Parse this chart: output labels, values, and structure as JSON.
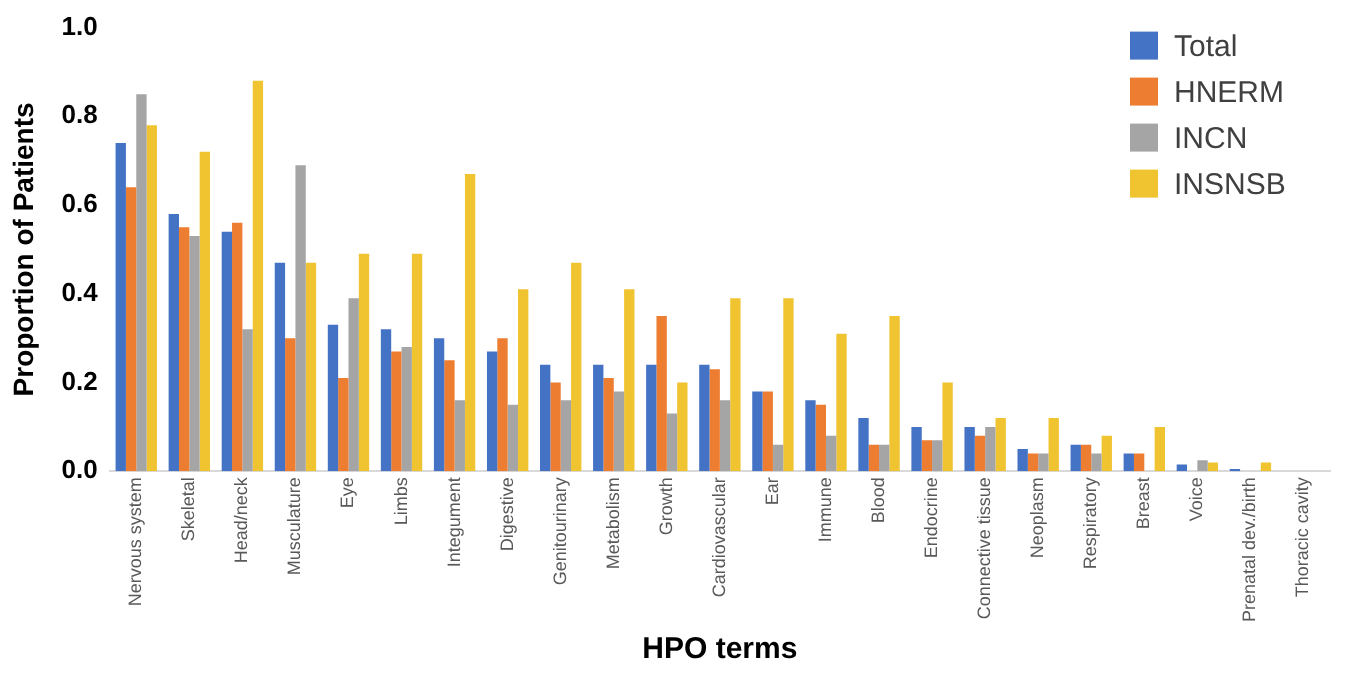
{
  "chart_data": {
    "type": "bar",
    "xlabel": "HPO terms",
    "ylabel": "Proportion of Patients",
    "categories": [
      "Nervous system",
      "Skeletal",
      "Head/neck",
      "Musculature",
      "Eye",
      "Limbs",
      "Integument",
      "Digestive",
      "Genitourinary",
      "Metabolism",
      "Growth",
      "Cardiovascular",
      "Ear",
      "Immune",
      "Blood",
      "Endocrine",
      "Connective tissue",
      "Neoplasm",
      "Respiratory",
      "Breast",
      "Voice",
      "Prenatal dev./birth",
      "Thoracic cavity"
    ],
    "series": [
      {
        "name": "Total",
        "color": "#4472c4",
        "values": [
          0.74,
          0.58,
          0.54,
          0.47,
          0.33,
          0.32,
          0.3,
          0.27,
          0.24,
          0.24,
          0.24,
          0.24,
          0.18,
          0.16,
          0.12,
          0.1,
          0.1,
          0.05,
          0.06,
          0.04,
          0.015,
          0.005,
          0
        ]
      },
      {
        "name": "HNERM",
        "color": "#ed7d31",
        "values": [
          0.64,
          0.55,
          0.56,
          0.3,
          0.21,
          0.27,
          0.25,
          0.3,
          0.2,
          0.21,
          0.35,
          0.23,
          0.18,
          0.15,
          0.06,
          0.07,
          0.08,
          0.04,
          0.06,
          0.04,
          0,
          0,
          0
        ]
      },
      {
        "name": "INCN",
        "color": "#a5a5a5",
        "values": [
          0.85,
          0.53,
          0.32,
          0.69,
          0.39,
          0.28,
          0.16,
          0.15,
          0.16,
          0.18,
          0.13,
          0.16,
          0.06,
          0.08,
          0.06,
          0.07,
          0.1,
          0.04,
          0.04,
          0,
          0.025,
          0,
          0
        ]
      },
      {
        "name": "INSNSB",
        "color": "#f0c330",
        "values": [
          0.78,
          0.72,
          0.88,
          0.47,
          0.49,
          0.49,
          0.67,
          0.41,
          0.47,
          0.41,
          0.2,
          0.39,
          0.39,
          0.31,
          0.35,
          0.2,
          0.12,
          0.12,
          0.08,
          0.1,
          0.02,
          0.02,
          0
        ]
      }
    ],
    "ylim": [
      0,
      1
    ],
    "yticks": [
      {
        "value": 0,
        "label": "0.0"
      },
      {
        "value": 0.2,
        "label": "0.2"
      },
      {
        "value": 0.4,
        "label": "0.4"
      },
      {
        "value": 0.6,
        "label": "0.6"
      },
      {
        "value": 0.8,
        "label": "0.8"
      },
      {
        "value": 1,
        "label": "1.0"
      }
    ],
    "grid": false,
    "legend": "top right"
  }
}
